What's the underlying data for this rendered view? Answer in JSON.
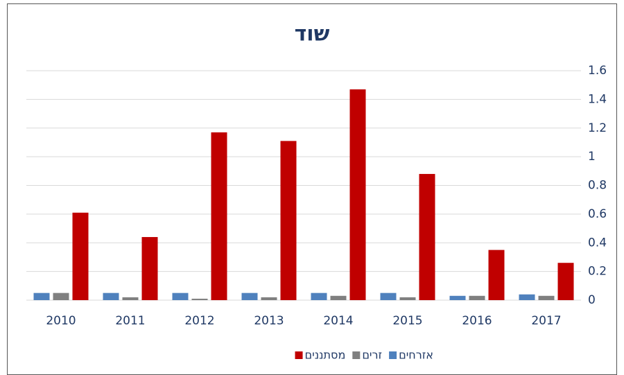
{
  "chart_data": {
    "type": "bar",
    "title": "שוד",
    "categories": [
      "2010",
      "2011",
      "2012",
      "2013",
      "2014",
      "2015",
      "2016",
      "2017"
    ],
    "series": [
      {
        "name": "אזרחים",
        "color": "#4f81bd",
        "values": [
          0.05,
          0.05,
          0.05,
          0.05,
          0.05,
          0.05,
          0.03,
          0.04
        ]
      },
      {
        "name": "זרים",
        "color": "#808080",
        "values": [
          0.05,
          0.02,
          0.01,
          0.02,
          0.03,
          0.02,
          0.03,
          0.03
        ]
      },
      {
        "name": "מסתננים",
        "color": "#c00000",
        "values": [
          0.61,
          0.44,
          1.17,
          1.11,
          1.47,
          0.88,
          0.35,
          0.26
        ]
      }
    ],
    "ylim": [
      0,
      1.6
    ],
    "yticks": [
      0,
      0.2,
      0.4,
      0.6,
      0.8,
      1,
      1.2,
      1.4,
      1.6
    ],
    "grid": true,
    "legend": "bottom"
  }
}
